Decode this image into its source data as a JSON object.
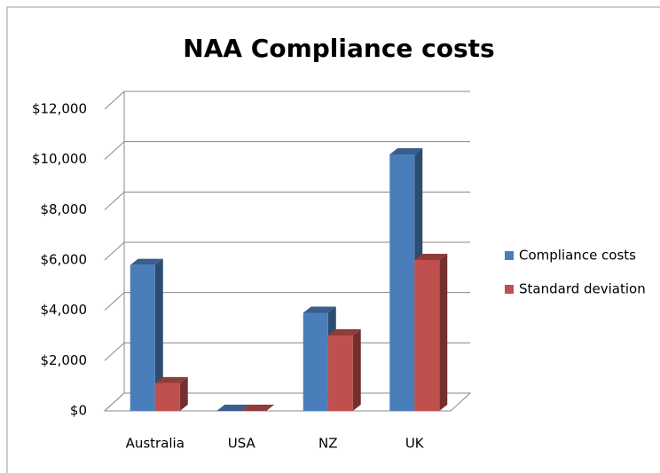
{
  "chart_data": {
    "type": "bar",
    "title": "NAA Compliance costs",
    "categories": [
      "Australia",
      "USA",
      "NZ",
      "UK"
    ],
    "series": [
      {
        "name": "Compliance costs",
        "color": "#4a7ebb",
        "values": [
          5800,
          0,
          3900,
          10200
        ]
      },
      {
        "name": "Standard deviation",
        "color": "#c0504d",
        "values": [
          1100,
          0,
          3000,
          6000
        ]
      }
    ],
    "ylim": [
      0,
      12000
    ],
    "yticks": [
      {
        "value": 0,
        "label": "$0"
      },
      {
        "value": 2000,
        "label": "$2,000"
      },
      {
        "value": 4000,
        "label": "$4,000"
      },
      {
        "value": 6000,
        "label": "$6,000"
      },
      {
        "value": 8000,
        "label": "$8,000"
      },
      {
        "value": 10000,
        "label": "$10,000"
      },
      {
        "value": 12000,
        "label": "$12,000"
      }
    ],
    "grid": true,
    "legend": "right"
  }
}
